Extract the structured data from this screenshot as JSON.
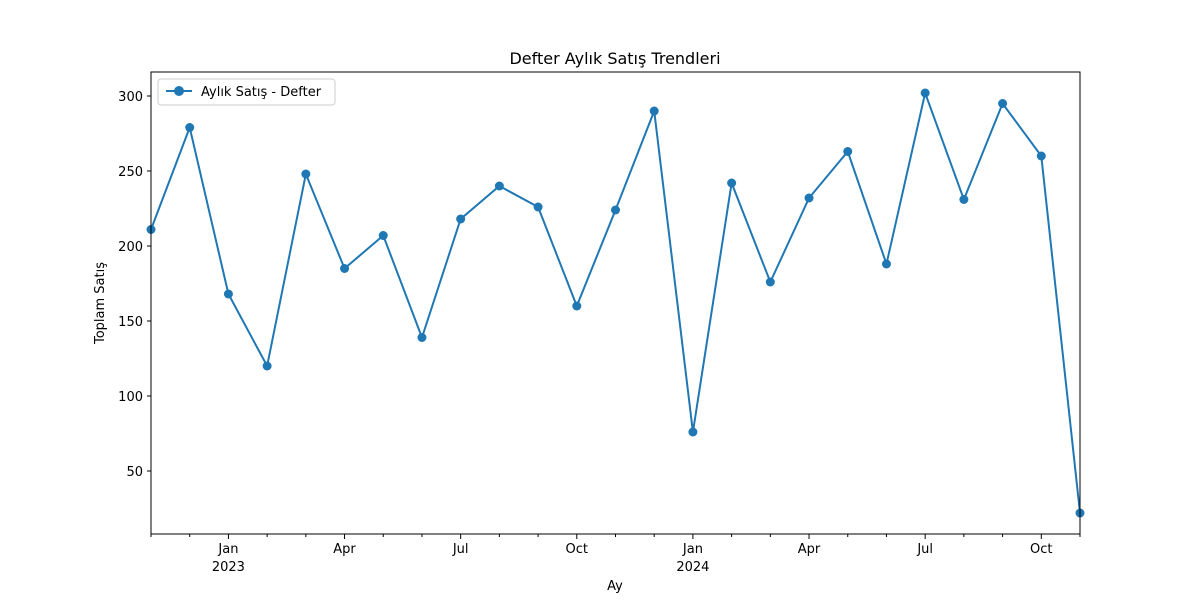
{
  "chart_data": {
    "type": "line",
    "title": "Defter Aylık Satış Trendleri",
    "xlabel": "Ay",
    "ylabel": "Toplam Satış",
    "x_start": "2022-11",
    "x_end": "2024-11",
    "ylim": [
      8,
      316
    ],
    "y_ticks": [
      50,
      100,
      150,
      200,
      250,
      300
    ],
    "x_major_ticks": [
      {
        "month": "2023-01",
        "label": "Jan",
        "year": "2023"
      },
      {
        "month": "2023-04",
        "label": "Apr",
        "year": ""
      },
      {
        "month": "2023-07",
        "label": "Jul",
        "year": ""
      },
      {
        "month": "2023-10",
        "label": "Oct",
        "year": ""
      },
      {
        "month": "2024-01",
        "label": "Jan",
        "year": "2024"
      },
      {
        "month": "2024-04",
        "label": "Apr",
        "year": ""
      },
      {
        "month": "2024-07",
        "label": "Jul",
        "year": ""
      },
      {
        "month": "2024-10",
        "label": "Oct",
        "year": ""
      }
    ],
    "grid": false,
    "legend_position": "top-left",
    "series": [
      {
        "name": "Aylık Satış - Defter",
        "color": "#1f77b4",
        "marker": "circle",
        "x": [
          "2022-11",
          "2022-12",
          "2023-01",
          "2023-02",
          "2023-03",
          "2023-04",
          "2023-05",
          "2023-06",
          "2023-07",
          "2023-08",
          "2023-09",
          "2023-10",
          "2023-11",
          "2023-12",
          "2024-01",
          "2024-02",
          "2024-03",
          "2024-04",
          "2024-05",
          "2024-06",
          "2024-07",
          "2024-08",
          "2024-09",
          "2024-10",
          "2024-11"
        ],
        "values": [
          211,
          279,
          168,
          120,
          248,
          185,
          207,
          139,
          218,
          240,
          226,
          160,
          224,
          290,
          76,
          242,
          176,
          232,
          263,
          188,
          302,
          231,
          295,
          260,
          22
        ]
      }
    ]
  }
}
